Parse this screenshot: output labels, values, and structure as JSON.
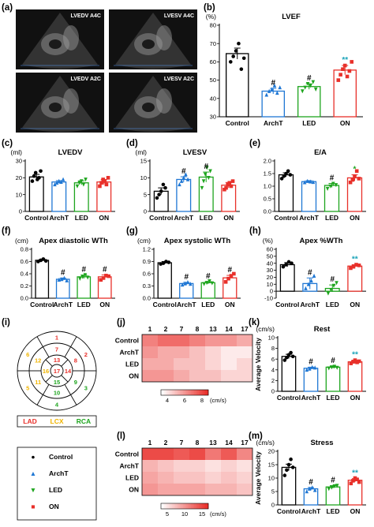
{
  "panels": {
    "a": "(a)",
    "b": "(b)",
    "c": "(c)",
    "d": "(d)",
    "e": "(e)",
    "f": "(f)",
    "g": "(g)",
    "h": "(h)",
    "i": "(i)",
    "j": "(j)",
    "k": "(k)",
    "l": "(l)",
    "m": "(m)"
  },
  "echo_labels": [
    "LVEDV A4C",
    "LVESV A4C",
    "LVEDV A2C",
    "LVESV A2C"
  ],
  "colors": {
    "Control": "#000000",
    "ArchT": "#1f77d4",
    "LED": "#1ea51e",
    "ON": "#e8302a"
  },
  "chart_data": [
    {
      "id": "b",
      "type": "bar",
      "title": "LVEF",
      "unit": "(%)",
      "categories": [
        "Control",
        "ArchT",
        "LED",
        "ON"
      ],
      "values": [
        64.5,
        44,
        46.5,
        55.5
      ],
      "errors": [
        3,
        1.5,
        1.5,
        2.5
      ],
      "points": [
        [
          60,
          63,
          66,
          70,
          56,
          62
        ],
        [
          42,
          44,
          45,
          47,
          43,
          46
        ],
        [
          44,
          46,
          48,
          47,
          49,
          45
        ],
        [
          50,
          53,
          56,
          58,
          52,
          55,
          60
        ]
      ],
      "yticks": [
        30,
        40,
        50,
        60,
        70,
        80
      ],
      "ylim": [
        30,
        80
      ],
      "sig": [
        "",
        "#",
        "#",
        "**"
      ],
      "sig_colors": [
        "",
        "#000000",
        "#000000",
        "#1aa3b8"
      ]
    },
    {
      "id": "c",
      "type": "bar",
      "title": "LVEDV",
      "unit": "(ml)",
      "categories": [
        "Control",
        "ArchT",
        "LED",
        "ON"
      ],
      "values": [
        20.5,
        17.5,
        17,
        17.5
      ],
      "errors": [
        1.5,
        0.8,
        1.2,
        1.5
      ],
      "points": [
        [
          18,
          21,
          23,
          19,
          20,
          24
        ],
        [
          16,
          17,
          18,
          17.5,
          19
        ],
        [
          15,
          17,
          18,
          16,
          19
        ],
        [
          15,
          17,
          19,
          18,
          16,
          20
        ]
      ],
      "yticks": [
        0,
        10,
        20,
        30
      ],
      "ylim": [
        0,
        30
      ],
      "sig": [
        "",
        "",
        "",
        ""
      ],
      "sig_colors": [
        "",
        "",
        "",
        ""
      ]
    },
    {
      "id": "d",
      "type": "bar",
      "title": "LVESV",
      "unit": "(ml)",
      "categories": [
        "Control",
        "ArchT",
        "LED",
        "ON"
      ],
      "values": [
        6,
        9.5,
        10.2,
        7.8
      ],
      "errors": [
        1,
        0.8,
        1.5,
        0.8
      ],
      "points": [
        [
          4,
          5,
          6,
          8,
          7
        ],
        [
          8,
          9,
          10,
          11,
          9.5
        ],
        [
          7,
          9,
          11,
          13,
          10,
          12
        ],
        [
          6.5,
          7,
          8,
          8.5,
          7.5,
          9
        ]
      ],
      "yticks": [
        0,
        5,
        10,
        15
      ],
      "ylim": [
        0,
        15
      ],
      "sig": [
        "",
        "#",
        "#",
        ""
      ],
      "sig_colors": [
        "",
        "#000000",
        "#000000",
        ""
      ]
    },
    {
      "id": "e",
      "type": "bar",
      "title": "E/A",
      "unit": "",
      "categories": [
        "Control",
        "ArchT",
        "LED",
        "ON"
      ],
      "values": [
        1.45,
        1.18,
        1.03,
        1.33
      ],
      "errors": [
        0.08,
        0.04,
        0.08,
        0.12
      ],
      "points": [
        [
          1.3,
          1.4,
          1.5,
          1.6,
          1.45
        ],
        [
          1.15,
          1.2,
          1.18,
          1.16
        ],
        [
          0.9,
          1.0,
          1.1,
          1.05
        ],
        [
          1.15,
          1.25,
          1.4,
          1.6,
          1.3
        ]
      ],
      "yticks": [
        0.0,
        0.5,
        1.0,
        1.5,
        2.0
      ],
      "ylim": [
        0,
        2.0
      ],
      "sig": [
        "",
        "",
        "#",
        "*"
      ],
      "sig_colors": [
        "",
        "",
        "#000000",
        "#1ea51e"
      ]
    },
    {
      "id": "f",
      "type": "bar",
      "title": "Apex diastolic WTh",
      "unit": "(cm)",
      "categories": [
        "Control",
        "ArchT",
        "LED",
        "ON"
      ],
      "values": [
        0.62,
        0.31,
        0.35,
        0.35
      ],
      "errors": [
        0.015,
        0.02,
        0.03,
        0.03
      ],
      "points": [
        [
          0.6,
          0.62,
          0.64,
          0.61
        ],
        [
          0.3,
          0.31,
          0.33,
          0.29
        ],
        [
          0.32,
          0.35,
          0.38,
          0.34
        ],
        [
          0.3,
          0.33,
          0.37,
          0.36
        ]
      ],
      "yticks": [
        0.0,
        0.2,
        0.4,
        0.6,
        0.8
      ],
      "ylim": [
        0,
        0.8
      ],
      "sig": [
        "",
        "#",
        "#",
        "#"
      ],
      "sig_colors": [
        "",
        "#000000",
        "#000000",
        "#000000"
      ]
    },
    {
      "id": "g",
      "type": "bar",
      "title": "Apex systolic WTh",
      "unit": "(cm)",
      "categories": [
        "Control",
        "ArchT",
        "LED",
        "ON"
      ],
      "values": [
        0.87,
        0.36,
        0.38,
        0.5
      ],
      "errors": [
        0.03,
        0.03,
        0.03,
        0.06
      ],
      "points": [
        [
          0.84,
          0.86,
          0.9,
          0.88
        ],
        [
          0.33,
          0.36,
          0.39,
          0.35
        ],
        [
          0.35,
          0.38,
          0.42,
          0.37
        ],
        [
          0.4,
          0.48,
          0.55,
          0.6
        ]
      ],
      "yticks": [
        0.0,
        0.3,
        0.6,
        0.9,
        1.2
      ],
      "ylim": [
        0,
        1.2
      ],
      "sig": [
        "",
        "#",
        "#",
        "#"
      ],
      "sig_colors": [
        "",
        "#000000",
        "#000000",
        "#000000"
      ]
    },
    {
      "id": "h",
      "type": "bar",
      "title": "Apex %WTh",
      "unit": "(%)",
      "categories": [
        "Control",
        "ArchT",
        "LED",
        "ON"
      ],
      "values": [
        38,
        11,
        4,
        36
      ],
      "errors": [
        3,
        8,
        5,
        2
      ],
      "points": [
        [
          35,
          38,
          42,
          40
        ],
        [
          4,
          10,
          15,
          22
        ],
        [
          -3,
          2,
          8,
          12
        ],
        [
          33,
          35,
          38,
          37
        ]
      ],
      "yticks": [
        -10,
        0,
        10,
        20,
        30,
        40,
        50,
        60
      ],
      "ylim": [
        -10,
        60
      ],
      "sig": [
        "",
        "#",
        "#",
        "**"
      ],
      "sig_colors": [
        "",
        "#000000",
        "#000000",
        "#1aa3b8"
      ]
    },
    {
      "id": "j",
      "type": "heatmap",
      "columns": [
        "1",
        "2",
        "7",
        "8",
        "13",
        "14",
        "17"
      ],
      "rows": [
        "Control",
        "ArchT",
        "LED",
        "ON"
      ],
      "values": [
        [
          6.5,
          7,
          7,
          6.5,
          6,
          6,
          5.5
        ],
        [
          6,
          5.5,
          5.5,
          5,
          4.5,
          4,
          4
        ],
        [
          5.5,
          5.5,
          5,
          5,
          4.5,
          4,
          4.5
        ],
        [
          6,
          6,
          5.5,
          5,
          5,
          4.5,
          4.5
        ]
      ],
      "scale_ticks": [
        "4",
        "6",
        "8"
      ],
      "scale_unit": "(cm/s)",
      "vmin": 3.5,
      "vmax": 8.5
    },
    {
      "id": "k",
      "type": "bar",
      "title": "Rest",
      "unit": "(cm/s)",
      "ylabel": "Average Velocity",
      "categories": [
        "Control",
        "ArchT",
        "LED",
        "ON"
      ],
      "values": [
        6.5,
        4.3,
        4.5,
        5.5
      ],
      "errors": [
        0.4,
        0.2,
        0.2,
        0.3
      ],
      "points": [
        [
          5.8,
          6.3,
          6.8,
          7.2,
          6.5
        ],
        [
          4,
          4.2,
          4.5,
          4.4
        ],
        [
          4.3,
          4.5,
          4.6,
          4.4
        ],
        [
          5.2,
          5.5,
          5.8,
          5.4,
          5.6
        ]
      ],
      "yticks": [
        0,
        2,
        4,
        6,
        8,
        10
      ],
      "ylim": [
        0,
        10
      ],
      "sig": [
        "",
        "#",
        "#",
        "**"
      ],
      "sig_colors": [
        "",
        "#000000",
        "#000000",
        "#1aa3b8"
      ]
    },
    {
      "id": "l",
      "type": "heatmap",
      "columns": [
        "1",
        "2",
        "7",
        "8",
        "13",
        "14",
        "17"
      ],
      "rows": [
        "Control",
        "ArchT",
        "LED",
        "ON"
      ],
      "values": [
        [
          15,
          15,
          14,
          15,
          12,
          14,
          11
        ],
        [
          8,
          7,
          6,
          6,
          5,
          6,
          5
        ],
        [
          9,
          8,
          7,
          7,
          6,
          7,
          6
        ],
        [
          10,
          9,
          9,
          9,
          8,
          8,
          7
        ]
      ],
      "scale_ticks": [
        "5",
        "10",
        "15"
      ],
      "scale_unit": "(cm/s)",
      "vmin": 3,
      "vmax": 17
    },
    {
      "id": "m",
      "type": "bar",
      "title": "Stress",
      "unit": "(cm/s)",
      "ylabel": "Average Velocity",
      "categories": [
        "Control",
        "ArchT",
        "LED",
        "ON"
      ],
      "values": [
        14,
        6,
        6.7,
        9.2
      ],
      "errors": [
        1.2,
        0.5,
        0.5,
        0.6
      ],
      "points": [
        [
          11,
          13,
          15,
          17,
          14
        ],
        [
          5,
          6,
          6.5,
          5.5
        ],
        [
          6,
          6.5,
          7,
          7.2
        ],
        [
          8,
          9,
          10,
          9.5,
          8.5
        ]
      ],
      "yticks": [
        0,
        5,
        10,
        15,
        20
      ],
      "ylim": [
        0,
        20
      ],
      "sig": [
        "",
        "#",
        "#",
        "**"
      ],
      "sig_colors": [
        "",
        "#000000",
        "#000000",
        "#1aa3b8"
      ]
    }
  ],
  "bullseye": {
    "rings": [
      [
        {
          "n": "1",
          "c": "LAD"
        },
        {
          "n": "2",
          "c": "LAD"
        },
        {
          "n": "3",
          "c": "RCA"
        },
        {
          "n": "4",
          "c": "RCA"
        },
        {
          "n": "5",
          "c": "LCX"
        },
        {
          "n": "6",
          "c": "LCX"
        }
      ],
      [
        {
          "n": "7",
          "c": "LAD"
        },
        {
          "n": "8",
          "c": "LAD"
        },
        {
          "n": "9",
          "c": "RCA"
        },
        {
          "n": "10",
          "c": "RCA"
        },
        {
          "n": "11",
          "c": "LCX"
        },
        {
          "n": "12",
          "c": "LCX"
        }
      ],
      [
        {
          "n": "13",
          "c": "LAD"
        },
        {
          "n": "14",
          "c": "LAD"
        },
        {
          "n": "15",
          "c": "RCA"
        },
        {
          "n": "16",
          "c": "LCX"
        }
      ]
    ],
    "apex": {
      "n": "17",
      "c": "LAD"
    },
    "legend": [
      {
        "label": "LAD",
        "color": "#e8302a"
      },
      {
        "label": "LCX",
        "color": "#f0b400"
      },
      {
        "label": "RCA",
        "color": "#1ea51e"
      }
    ]
  },
  "group_legend": [
    {
      "label": "Control",
      "symbol": "●",
      "color": "#000000"
    },
    {
      "label": "ArchT",
      "symbol": "▲",
      "color": "#1f77d4"
    },
    {
      "label": "LED",
      "symbol": "▼",
      "color": "#1ea51e"
    },
    {
      "label": "ON",
      "symbol": "■",
      "color": "#e8302a"
    }
  ]
}
